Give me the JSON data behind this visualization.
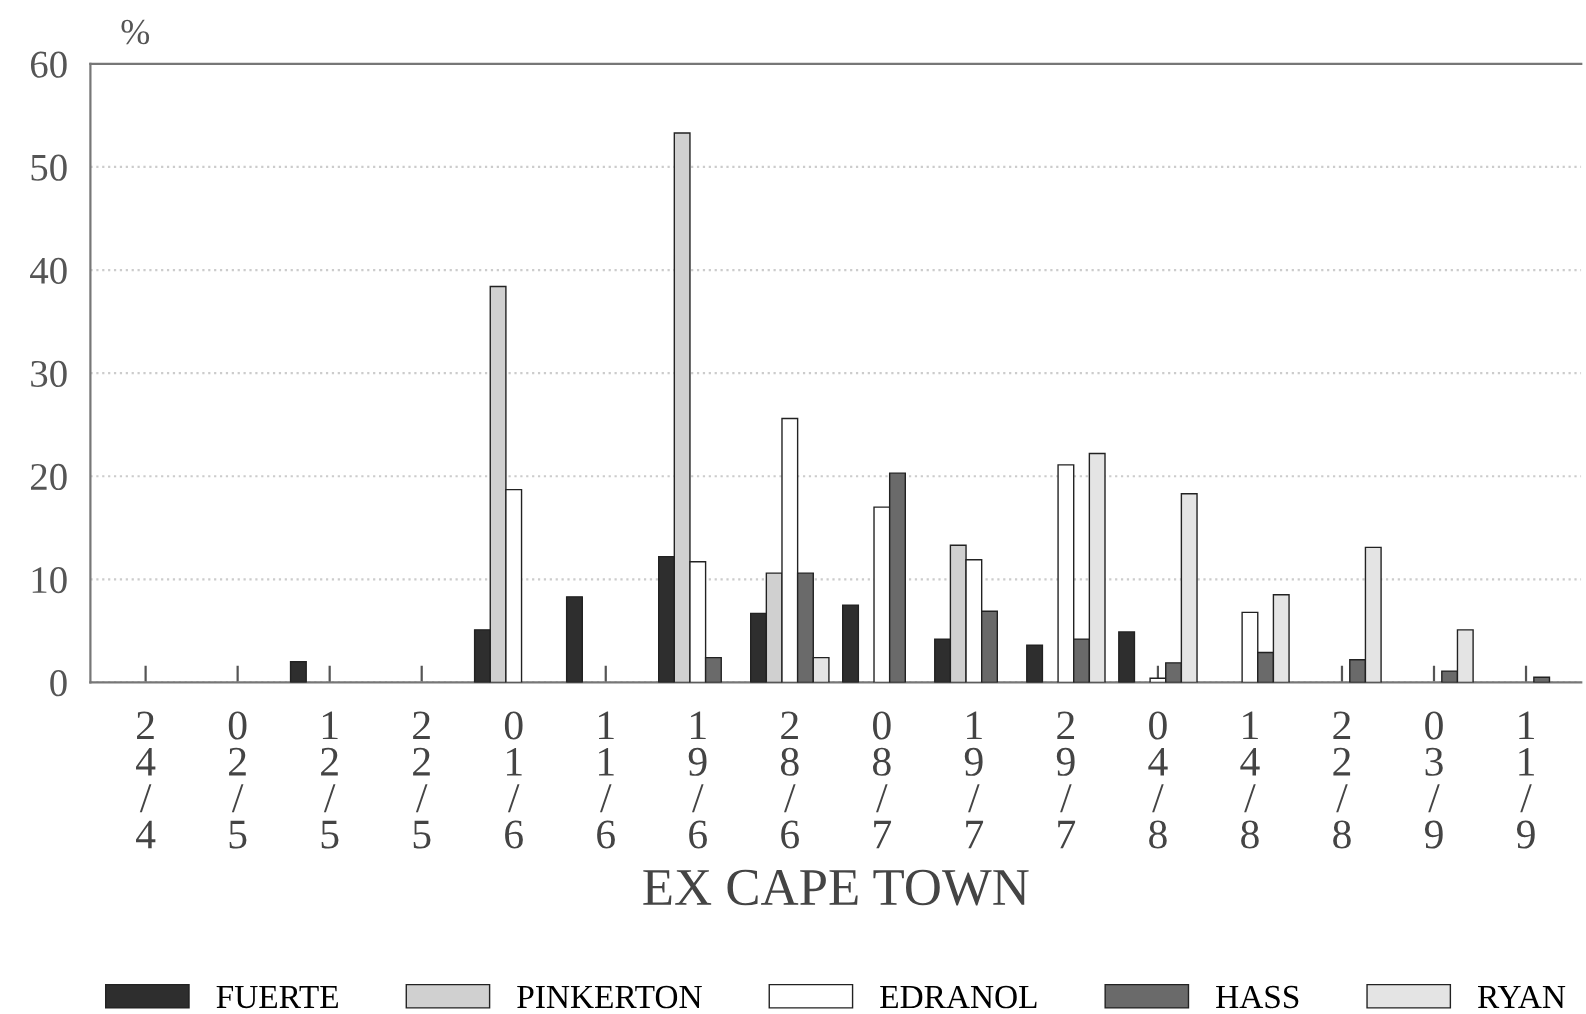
{
  "chart_data": {
    "type": "bar",
    "ylabel": "%",
    "xlabel": "EX CAPE TOWN",
    "categories": [
      "24/4",
      "02/5",
      "12/5",
      "22/5",
      "01/6",
      "11/6",
      "19/6",
      "28/6",
      "08/7",
      "19/7",
      "29/7",
      "04/8",
      "14/8",
      "22/8",
      "03/9",
      "11/9"
    ],
    "series": [
      {
        "name": "FUERTE",
        "color": "#2e2e2e",
        "values": [
          null,
          null,
          2,
          null,
          5.1,
          8.3,
          12.2,
          6.7,
          7.5,
          4.2,
          3.6,
          4.9,
          null,
          null,
          null,
          null
        ]
      },
      {
        "name": "PINKERTON",
        "color": "#d0d0d0",
        "values": [
          null,
          null,
          null,
          null,
          38.4,
          null,
          53.3,
          10.6,
          null,
          13.3,
          null,
          null,
          null,
          null,
          null,
          null
        ]
      },
      {
        "name": "EDRANOL",
        "color": "#ffffff",
        "values": [
          null,
          null,
          null,
          null,
          18.7,
          null,
          11.7,
          25.6,
          17,
          11.9,
          21.1,
          0.4,
          6.8,
          null,
          null,
          null
        ]
      },
      {
        "name": "HASS",
        "color": "#6a6a6a",
        "values": [
          null,
          null,
          null,
          null,
          null,
          null,
          2.4,
          10.6,
          20.3,
          6.9,
          4.2,
          1.9,
          2.9,
          2.2,
          1.1,
          0.5
        ]
      },
      {
        "name": "RYAN",
        "color": "#e4e4e4",
        "values": [
          null,
          null,
          null,
          null,
          null,
          null,
          null,
          2.4,
          null,
          null,
          22.2,
          18.3,
          8.5,
          13.1,
          5.1,
          null
        ]
      }
    ],
    "ylim": [
      0,
      60
    ],
    "yticks": [
      0,
      10,
      20,
      30,
      40,
      50,
      60
    ],
    "grid": "y",
    "legend": "bottom"
  }
}
